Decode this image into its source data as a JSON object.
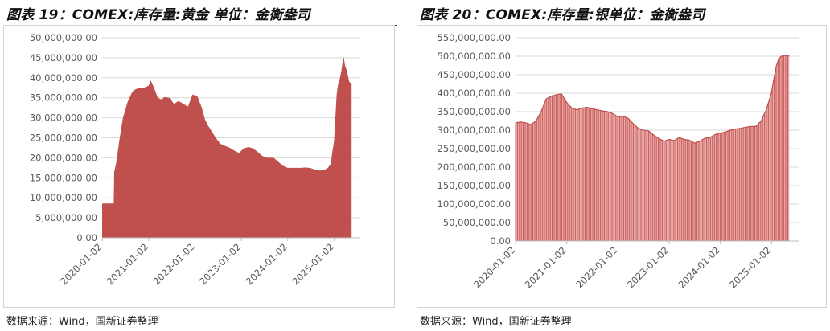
{
  "charts": [
    {
      "fig_title": "图表 19：COMEX:库存量:黄金 单位：金衡盎司",
      "source": "数据来源：Wind，国新证券整理",
      "color": "#c0504d"
    },
    {
      "fig_title": "图表 20：COMEX:库存量:银单位：金衡盎司",
      "source": "数据来源：Wind，国新证券整理",
      "color": "#c0504d"
    }
  ],
  "chart_data": [
    {
      "type": "area",
      "title": "COMEX:库存量:黄金",
      "unit": "金衡盎司",
      "xlabel": "",
      "ylabel": "",
      "ylim": [
        0,
        50000000
      ],
      "yticks": [
        "0.00",
        "5,000,000.00",
        "10,000,000.00",
        "15,000,000.00",
        "20,000,000.00",
        "25,000,000.00",
        "30,000,000.00",
        "35,000,000.00",
        "40,000,000.00",
        "45,000,000.00",
        "50,000,000.00"
      ],
      "xticks": [
        "2020-01-02",
        "2021-01-02",
        "2022-01-02",
        "2023-01-02",
        "2024-01-02",
        "2025-01-02"
      ],
      "xrange": [
        2020.0,
        2025.55
      ],
      "x": [
        2020.0,
        2020.25,
        2020.26,
        2020.3,
        2020.38,
        2020.45,
        2020.55,
        2020.65,
        2020.7,
        2020.8,
        2020.9,
        2021.0,
        2021.05,
        2021.12,
        2021.2,
        2021.28,
        2021.35,
        2021.45,
        2021.55,
        2021.65,
        2021.75,
        2021.85,
        2021.95,
        2022.05,
        2022.15,
        2022.22,
        2022.3,
        2022.37,
        2022.45,
        2022.55,
        2022.65,
        2022.75,
        2022.85,
        2022.95,
        2023.05,
        2023.15,
        2023.25,
        2023.35,
        2023.45,
        2023.55,
        2023.7,
        2023.8,
        2023.9,
        2024.0,
        2024.1,
        2024.2,
        2024.3,
        2024.4,
        2024.5,
        2024.6,
        2024.7,
        2024.8,
        2024.87,
        2024.93,
        2024.97,
        2025.0,
        2025.03,
        2025.06,
        2025.09,
        2025.12,
        2025.15,
        2025.18,
        2025.21,
        2025.24,
        2025.27,
        2025.3,
        2025.33,
        2025.36,
        2025.38
      ],
      "values": [
        8600000,
        8600000,
        16500000,
        18500000,
        25000000,
        30000000,
        34000000,
        36500000,
        37000000,
        37500000,
        37500000,
        38000000,
        39300000,
        37500000,
        35000000,
        34600000,
        35200000,
        35000000,
        33500000,
        34200000,
        33500000,
        32800000,
        35800000,
        35500000,
        32500000,
        29500000,
        27800000,
        26500000,
        25000000,
        23500000,
        23000000,
        22500000,
        21800000,
        21200000,
        22300000,
        22700000,
        22400000,
        21500000,
        20500000,
        20000000,
        20000000,
        19000000,
        18000000,
        17500000,
        17500000,
        17500000,
        17500000,
        17600000,
        17400000,
        17000000,
        16800000,
        17000000,
        17500000,
        18500000,
        22000000,
        24000000,
        30000000,
        36000000,
        38500000,
        39500000,
        41000000,
        43500000,
        45200000,
        43000000,
        42000000,
        40500000,
        39000000,
        38700000,
        38500000
      ]
    },
    {
      "type": "area",
      "title": "COMEX:库存量:银",
      "unit": "金衡盎司",
      "xlabel": "",
      "ylabel": "",
      "ylim": [
        0,
        550000000
      ],
      "yticks": [
        "0.00",
        "50,000,000.00",
        "100,000,000.00",
        "150,000,000.00",
        "200,000,000.00",
        "250,000,000.00",
        "300,000,000.00",
        "350,000,000.00",
        "400,000,000.00",
        "450,000,000.00",
        "500,000,000.00",
        "550,000,000.00"
      ],
      "xticks": [
        "2020-01-02",
        "2021-01-02",
        "2022-01-02",
        "2023-01-02",
        "2024-01-02",
        "2025-01-02"
      ],
      "xrange": [
        2020.0,
        2025.55
      ],
      "x": [
        2020.0,
        2020.1,
        2020.2,
        2020.3,
        2020.4,
        2020.5,
        2020.6,
        2020.7,
        2020.8,
        2020.9,
        2021.0,
        2021.1,
        2021.2,
        2021.3,
        2021.4,
        2021.5,
        2021.6,
        2021.7,
        2021.8,
        2021.9,
        2022.0,
        2022.1,
        2022.2,
        2022.3,
        2022.4,
        2022.5,
        2022.6,
        2022.7,
        2022.8,
        2022.9,
        2023.0,
        2023.1,
        2023.2,
        2023.3,
        2023.4,
        2023.5,
        2023.6,
        2023.7,
        2023.8,
        2023.9,
        2024.0,
        2024.1,
        2024.2,
        2024.3,
        2024.4,
        2024.5,
        2024.6,
        2024.7,
        2024.8,
        2024.9,
        2025.0,
        2025.05,
        2025.1,
        2025.15,
        2025.2,
        2025.25,
        2025.3,
        2025.35
      ],
      "values": [
        320000000,
        322000000,
        320000000,
        315000000,
        325000000,
        350000000,
        385000000,
        392000000,
        396000000,
        398000000,
        375000000,
        360000000,
        355000000,
        360000000,
        362000000,
        358000000,
        355000000,
        352000000,
        350000000,
        345000000,
        336000000,
        338000000,
        332000000,
        318000000,
        305000000,
        300000000,
        298000000,
        287000000,
        278000000,
        270000000,
        275000000,
        272000000,
        280000000,
        275000000,
        273000000,
        265000000,
        270000000,
        278000000,
        280000000,
        288000000,
        292000000,
        295000000,
        300000000,
        303000000,
        305000000,
        308000000,
        310000000,
        310000000,
        325000000,
        355000000,
        400000000,
        440000000,
        475000000,
        495000000,
        500000000,
        502000000,
        502000000,
        500000000
      ]
    }
  ]
}
